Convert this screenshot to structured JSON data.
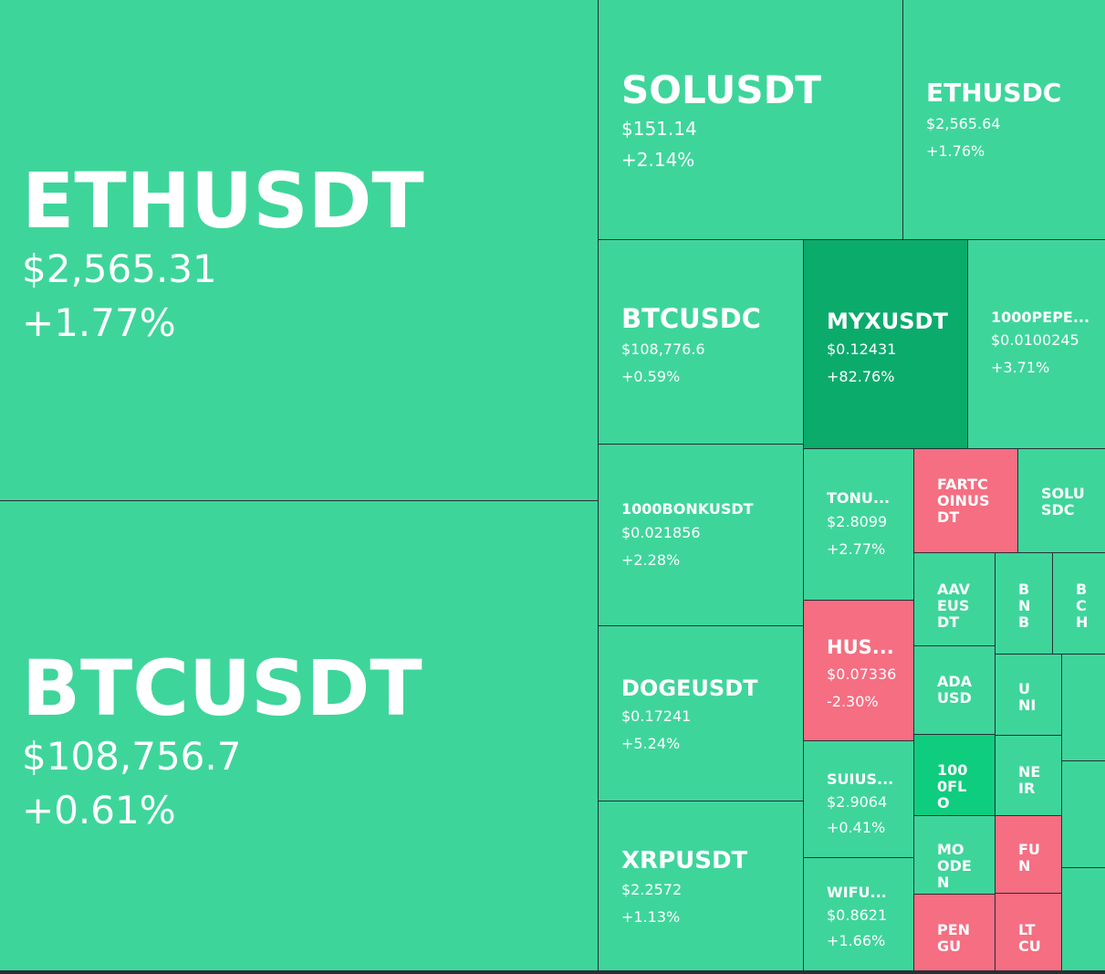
{
  "colors": {
    "up": "#3ed59b",
    "up_strong": "#0bab6c",
    "up_bright": "#0fcd7e",
    "down": "#f56e82",
    "grid_line": "#2a2e35"
  },
  "tiles": [
    {
      "id": "ethusdt",
      "symbol": "ETHUSDT",
      "price": "$2,565.31",
      "change": "+1.77%",
      "color": "up"
    },
    {
      "id": "btcusdt",
      "symbol": "BTCUSDT",
      "price": "$108,756.7",
      "change": "+0.61%",
      "color": "up"
    },
    {
      "id": "solusdt",
      "symbol": "SOLUSDT",
      "price": "$151.14",
      "change": "+2.14%",
      "color": "up"
    },
    {
      "id": "ethusdc",
      "symbol": "ETHUSDC",
      "price": "$2,565.64",
      "change": "+1.76%",
      "color": "up"
    },
    {
      "id": "btcusdc",
      "symbol": "BTCUSDC",
      "price": "$108,776.6",
      "change": "+0.59%",
      "color": "up"
    },
    {
      "id": "myxusdt",
      "symbol": "MYXUSDT",
      "price": "$0.12431",
      "change": "+82.76%",
      "color": "up_strong"
    },
    {
      "id": "1000pepe",
      "symbol": "1000PEPE...",
      "price": "$0.0100245",
      "change": "+3.71%",
      "color": "up"
    },
    {
      "id": "1000bonk",
      "symbol": "1000BONKUSDT",
      "price": "$0.021856",
      "change": "+2.28%",
      "color": "up"
    },
    {
      "id": "tonu",
      "symbol": "TONU...",
      "price": "$2.8099",
      "change": "+2.77%",
      "color": "up"
    },
    {
      "id": "fartcoin",
      "symbol": "FARTCOINUSDT",
      "price": "",
      "change": "",
      "color": "down"
    },
    {
      "id": "solusdc",
      "symbol": "SOLUSDC",
      "price": "",
      "change": "",
      "color": "up"
    },
    {
      "id": "dogeusdt",
      "symbol": "DOGEUSDT",
      "price": "$0.17241",
      "change": "+5.24%",
      "color": "up"
    },
    {
      "id": "hus",
      "symbol": "HUS...",
      "price": "$0.07336",
      "change": "-2.30%",
      "color": "down"
    },
    {
      "id": "aaveusdt",
      "symbol": "AAVEUSDT",
      "price": "",
      "change": "",
      "color": "up"
    },
    {
      "id": "bnb",
      "symbol": "BNB",
      "price": "",
      "change": "",
      "color": "up"
    },
    {
      "id": "bch",
      "symbol": "BCH",
      "price": "",
      "change": "",
      "color": "up"
    },
    {
      "id": "adausdt",
      "symbol": "ADAUSD",
      "price": "",
      "change": "",
      "color": "up"
    },
    {
      "id": "uni",
      "symbol": "UNI",
      "price": "",
      "change": "",
      "color": "up"
    },
    {
      "id": "edge1",
      "symbol": "",
      "price": "",
      "change": "",
      "color": "up"
    },
    {
      "id": "suius",
      "symbol": "SUIUS...",
      "price": "$2.9064",
      "change": "+0.41%",
      "color": "up"
    },
    {
      "id": "1000flo",
      "symbol": "1000FLO",
      "price": "",
      "change": "",
      "color": "up_bright"
    },
    {
      "id": "near",
      "symbol": "NEIR",
      "price": "",
      "change": "",
      "color": "up"
    },
    {
      "id": "edge2",
      "symbol": "",
      "price": "",
      "change": "",
      "color": "up"
    },
    {
      "id": "xrpusdt",
      "symbol": "XRPUSDT",
      "price": "$2.2572",
      "change": "+1.13%",
      "color": "up"
    },
    {
      "id": "wifu",
      "symbol": "WIFU...",
      "price": "$0.8621",
      "change": "+1.66%",
      "color": "up"
    },
    {
      "id": "moo",
      "symbol": "MOODEN",
      "price": "",
      "change": "",
      "color": "up"
    },
    {
      "id": "fun",
      "symbol": "FUN",
      "price": "",
      "change": "",
      "color": "down"
    },
    {
      "id": "edge3",
      "symbol": "",
      "price": "",
      "change": "",
      "color": "up"
    },
    {
      "id": "pen",
      "symbol": "PENGU",
      "price": "",
      "change": "",
      "color": "down"
    },
    {
      "id": "ltc",
      "symbol": "LTCU",
      "price": "",
      "change": "",
      "color": "down"
    }
  ]
}
